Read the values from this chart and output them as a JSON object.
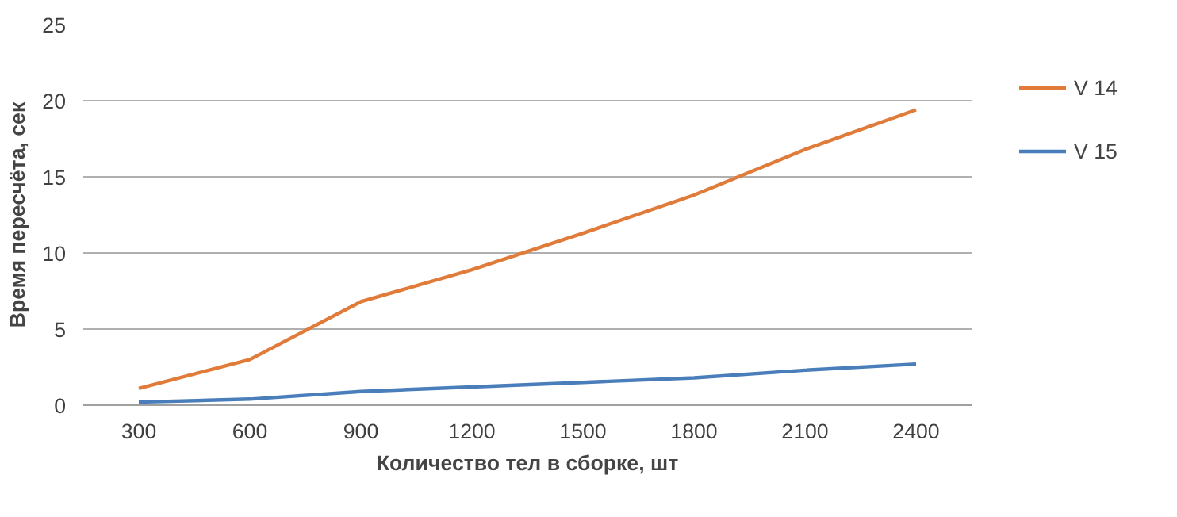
{
  "chart_data": {
    "type": "line",
    "xlabel": "Количество тел в сборке, шт",
    "ylabel": "Время пересчёта, сек",
    "categories": [
      "300",
      "600",
      "900",
      "1200",
      "1500",
      "1800",
      "2100",
      "2400"
    ],
    "series": [
      {
        "name": "V 14",
        "color": "#e07b39",
        "values": [
          1.1,
          3.0,
          6.8,
          8.9,
          11.3,
          13.8,
          16.8,
          19.4
        ]
      },
      {
        "name": "V 15",
        "color": "#4a7ebb",
        "values": [
          0.2,
          0.4,
          0.9,
          1.2,
          1.5,
          1.8,
          2.3,
          2.7
        ]
      }
    ],
    "ylim": [
      0,
      25
    ],
    "yticks": [
      0,
      5,
      10,
      15,
      20,
      25
    ],
    "grid": "y",
    "legend": "right",
    "marker": "none",
    "line_style": "solid"
  }
}
